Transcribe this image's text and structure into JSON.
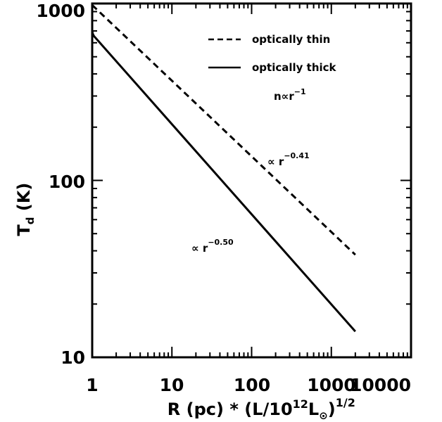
{
  "chart_data": {
    "type": "line",
    "x_scale": "log",
    "y_scale": "log",
    "xlim": [
      1,
      10000
    ],
    "ylim": [
      10,
      1000
    ],
    "x_ticks": [
      1,
      10,
      100,
      1000,
      10000
    ],
    "x_tick_labels": [
      "1",
      "10",
      "100",
      "1000",
      "10000"
    ],
    "y_ticks": [
      10,
      100,
      1000
    ],
    "y_tick_labels": [
      "10",
      "100",
      "1000"
    ],
    "xlabel": {
      "prefix": "R (pc) * (L/10",
      "exp": "12",
      "mid": "L",
      "sub": "⊙",
      "close": ")",
      "power": "1/2"
    },
    "ylabel": {
      "main": "T",
      "sub": "d",
      "unit": " (K)"
    },
    "series": [
      {
        "name": "optically thin",
        "dash": "dashed",
        "x": [
          1,
          2000
        ],
        "y": [
          980,
          38
        ]
      },
      {
        "name": "optically thick",
        "dash": "solid",
        "x": [
          1,
          1,
          1.02,
          1.05,
          1.1,
          2000
        ],
        "y": [
          760,
          700,
          672,
          655,
          640,
          14
        ]
      }
    ],
    "legend_position": "top-right",
    "annotations": [
      {
        "label": "n∝r",
        "sup": "−1"
      },
      {
        "label": "∝  r",
        "sup": "−0.41"
      },
      {
        "label": "∝  r",
        "sup": "−0.50"
      }
    ]
  }
}
